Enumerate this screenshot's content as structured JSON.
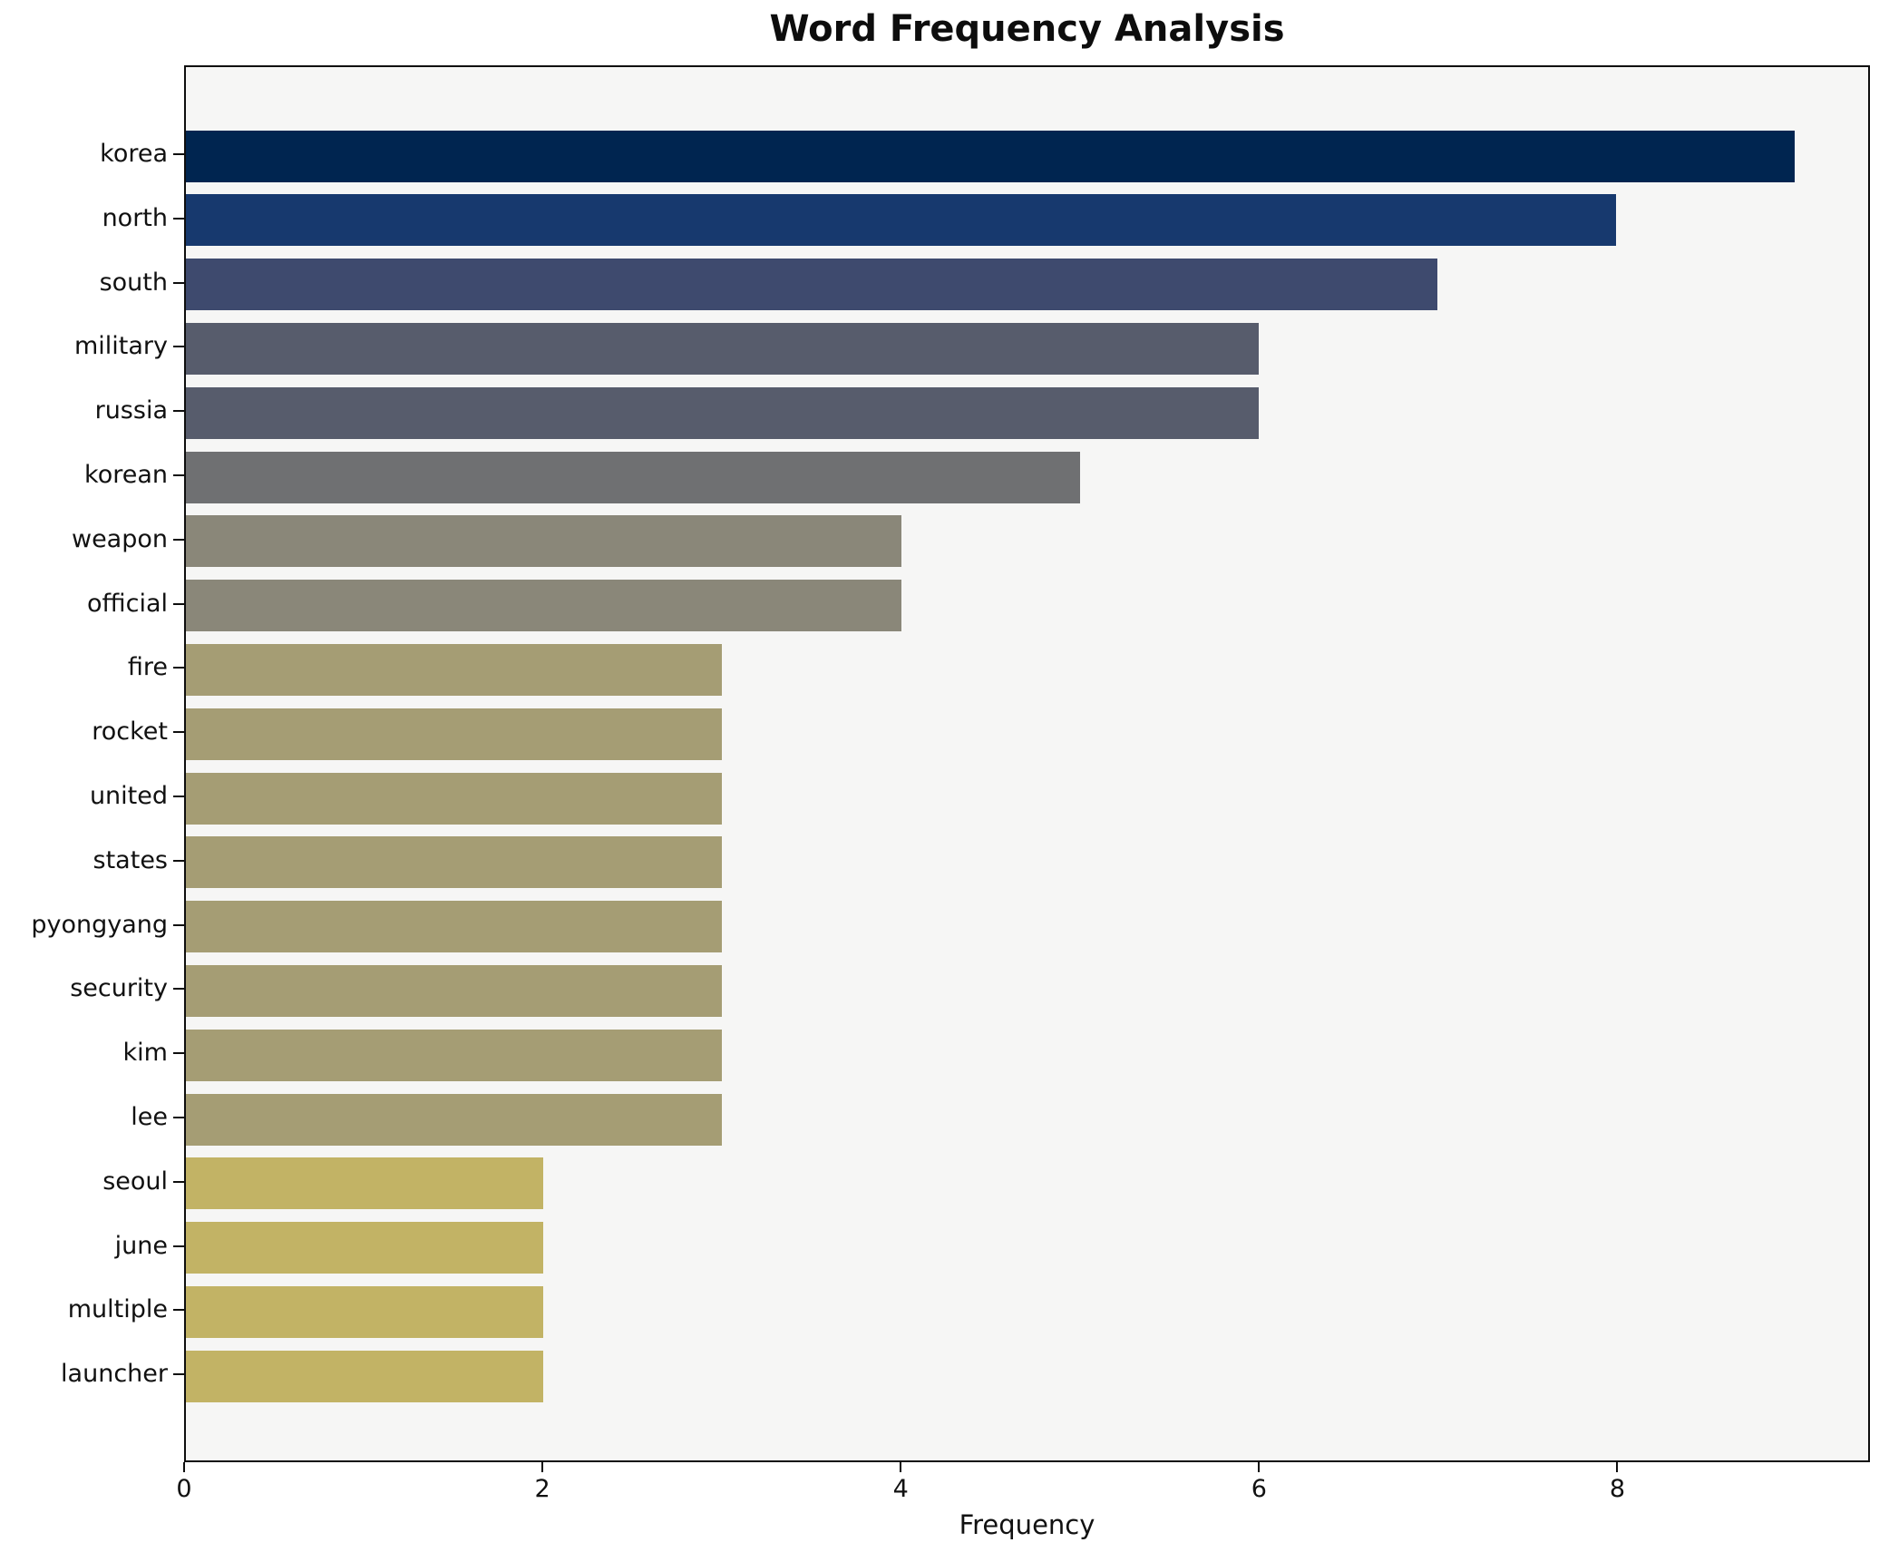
{
  "chart_data": {
    "type": "bar",
    "orientation": "horizontal",
    "title": "Word Frequency Analysis",
    "xlabel": "Frequency",
    "ylabel": "",
    "categories": [
      "korea",
      "north",
      "south",
      "military",
      "russia",
      "korean",
      "weapon",
      "official",
      "fire",
      "rocket",
      "united",
      "states",
      "pyongyang",
      "security",
      "kim",
      "lee",
      "seoul",
      "june",
      "multiple",
      "launcher"
    ],
    "values": [
      9,
      8,
      7,
      6,
      6,
      5,
      4,
      4,
      3,
      3,
      3,
      3,
      3,
      3,
      3,
      3,
      2,
      2,
      2,
      2
    ],
    "bar_colors": [
      "#002550",
      "#17396e",
      "#3e4a6e",
      "#575c6c",
      "#575c6c",
      "#6f7072",
      "#8a8779",
      "#8a8779",
      "#a59d74",
      "#a59d74",
      "#a59d74",
      "#a59d74",
      "#a59d74",
      "#a59d74",
      "#a59d74",
      "#a59d74",
      "#c2b365",
      "#c2b365",
      "#c2b365",
      "#c2b365"
    ],
    "xticks": [
      0,
      2,
      4,
      6,
      8
    ],
    "xlim": [
      0,
      9.41
    ],
    "grid": false,
    "legend": "none",
    "plot_bg": "#f6f6f5",
    "figure_bg": "#ffffff",
    "text_color": "#111111"
  }
}
